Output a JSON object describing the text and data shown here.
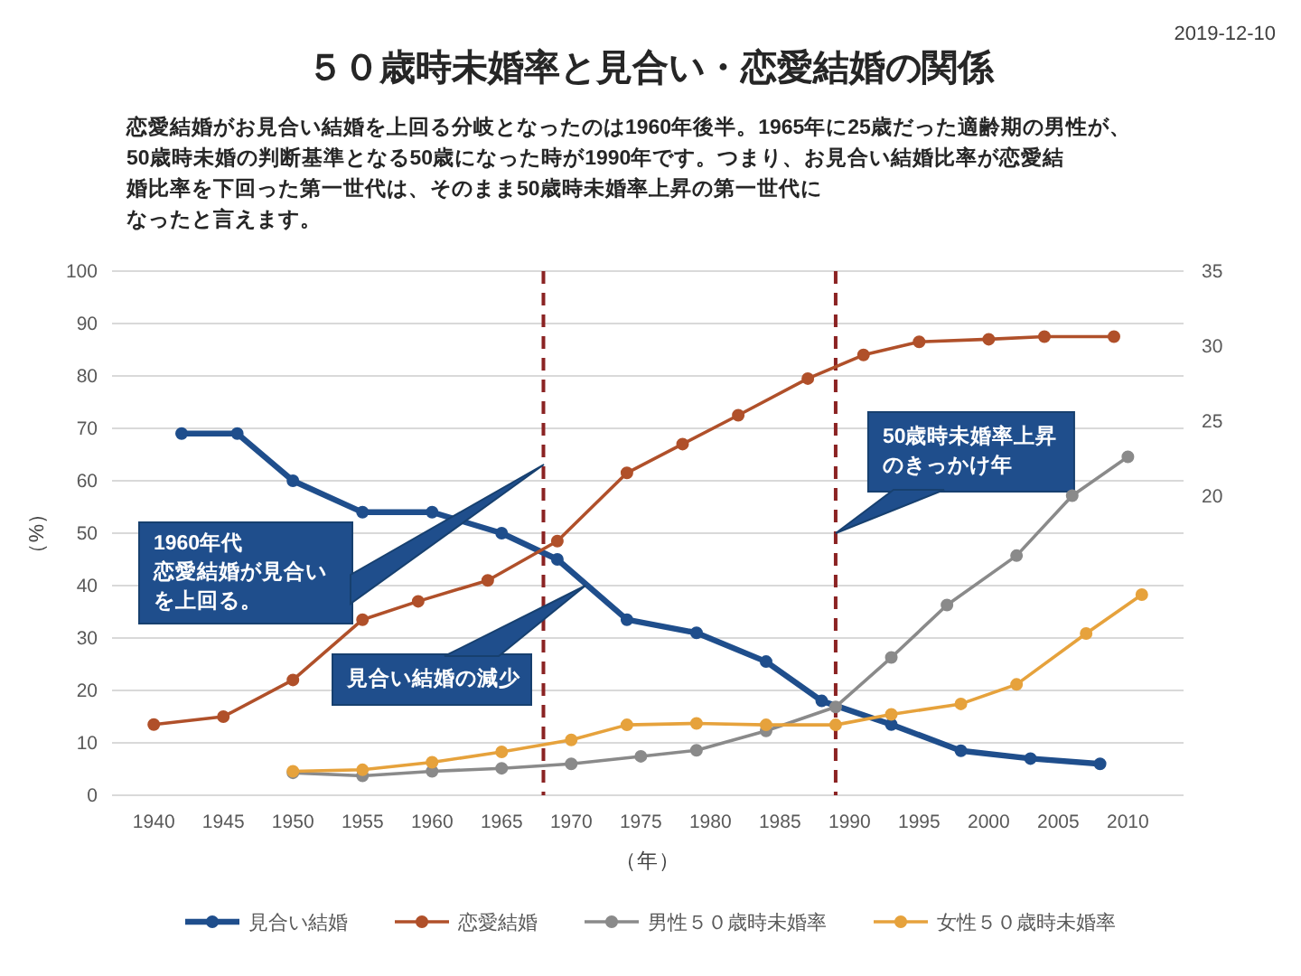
{
  "chart_data": {
    "type": "line",
    "title": "５０歳時未婚率と見合い・恋愛結婚の関係",
    "xlabel": "（年）",
    "ylabel": "（%）",
    "xlim": [
      1937,
      2014
    ],
    "xticks": [
      1940,
      1945,
      1950,
      1955,
      1960,
      1965,
      1970,
      1975,
      1980,
      1985,
      1990,
      1995,
      2000,
      2005,
      2010
    ],
    "ylim": [
      0,
      100
    ],
    "yticks": [
      0,
      10,
      20,
      30,
      40,
      50,
      60,
      70,
      80,
      90,
      100
    ],
    "y2lim": [
      0,
      35
    ],
    "y2ticks": [
      20,
      25,
      30,
      35
    ],
    "grid": "y",
    "legend": "bottom",
    "marker": "circle",
    "series": [
      {
        "name": "見合い結婚",
        "color": "#1f4e8c",
        "x": [
          1942,
          1946,
          1950,
          1955,
          1960,
          1965,
          1969,
          1974,
          1979,
          1984,
          1988,
          1993,
          1998,
          2003,
          2008
        ],
        "values": [
          69,
          69,
          60,
          54,
          54,
          50,
          45,
          33.5,
          31,
          25.5,
          18,
          13.5,
          8.5,
          7,
          6
        ]
      },
      {
        "name": "恋愛結婚",
        "color": "#b0502a",
        "x": [
          1940,
          1945,
          1950,
          1955,
          1959,
          1964,
          1969,
          1974,
          1978,
          1982,
          1987,
          1991,
          1995,
          2000,
          2004,
          2009
        ],
        "values": [
          13.5,
          15,
          22,
          33.5,
          37,
          41,
          48.5,
          61.5,
          67,
          72.5,
          79.5,
          84,
          86.5,
          87,
          87.5,
          87.5
        ]
      },
      {
        "name": "男性５０歳時未婚率",
        "color": "#8a8a8a",
        "axis": "y2",
        "x": [
          1950,
          1955,
          1960,
          1965,
          1970,
          1975,
          1979,
          1984,
          1989,
          1993,
          1997,
          2002,
          2006,
          2010
        ],
        "values": [
          1.5,
          1.3,
          1.6,
          1.8,
          2.1,
          2.6,
          3.0,
          4.3,
          5.9,
          9.2,
          12.7,
          16.0,
          20.0,
          22.6
        ]
      },
      {
        "name": "女性５０歳時未婚率",
        "color": "#e6a23c",
        "axis": "y2",
        "x": [
          1950,
          1955,
          1960,
          1965,
          1970,
          1974,
          1979,
          1984,
          1989,
          1993,
          1998,
          2002,
          2007,
          2011
        ],
        "values": [
          1.6,
          1.7,
          2.2,
          2.9,
          3.7,
          4.7,
          4.8,
          4.7,
          4.7,
          5.4,
          6.1,
          7.4,
          10.8,
          13.4
        ]
      }
    ],
    "ref_lines": [
      {
        "axis": "x",
        "value": 1968,
        "color": "#8b2323",
        "line_style": "dashed"
      },
      {
        "axis": "x",
        "value": 1989,
        "color": "#8b2323",
        "line_style": "dashed"
      }
    ],
    "annotations": [
      "2019-12-10",
      "恋愛結婚がお見合い結婚を上回る分岐となったのは1960年後半。1965年に25歳だった適齢期の男性が、50歳時未婚の判断基準となる50歳になった時が1990年です。つまり、お見合い結婚比率が恋愛結婚比率を下回った第一世代は、そのまま50歳時未婚率上昇の第一世代になったと言えます。",
      "1960年代恋愛結婚が見合いを上回る。",
      "見合い結婚の減少",
      {
        "text": "50歳時未婚率上昇のきっかけ年",
        "x": 1989,
        "y": 50
      }
    ]
  }
}
